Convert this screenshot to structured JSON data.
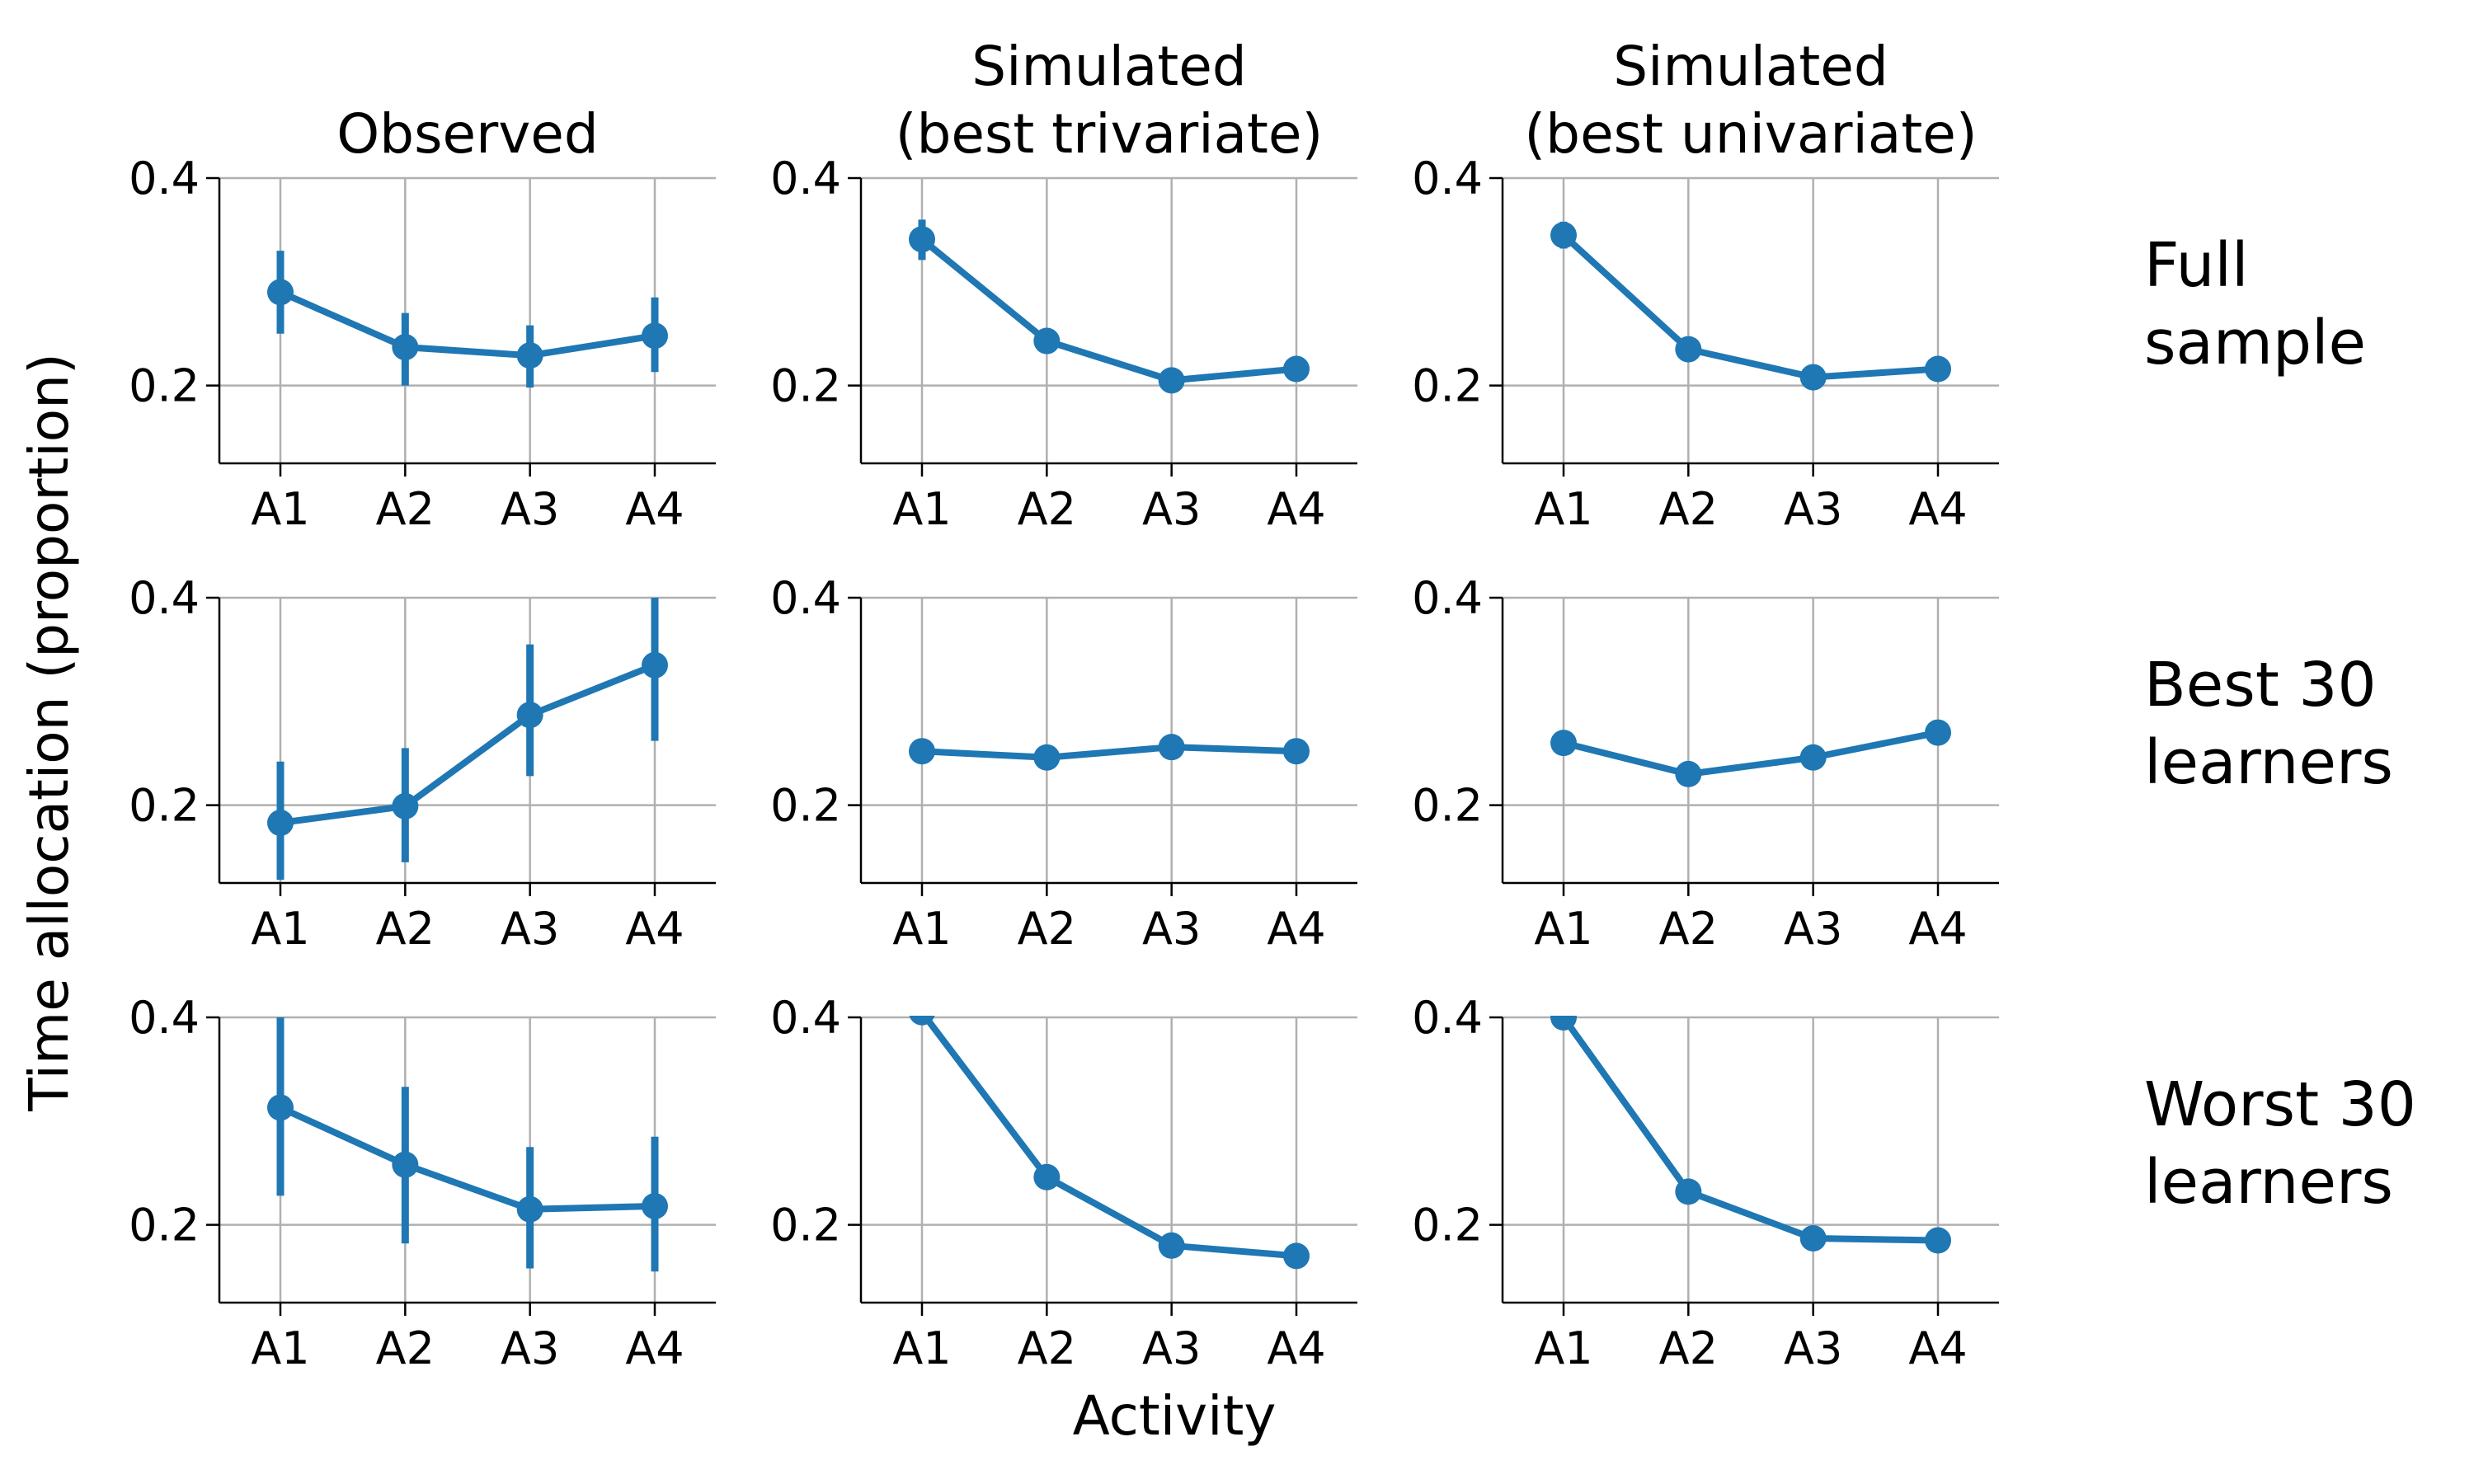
{
  "figure": {
    "ylabel": "Time allocation (proportion)",
    "xlabel": "Activity",
    "col_titles": [
      [
        "Observed"
      ],
      [
        "Simulated",
        "(best trivariate)"
      ],
      [
        "Simulated",
        "(best univariate)"
      ]
    ],
    "row_labels": [
      [
        "Full",
        "sample"
      ],
      [
        "Best 30",
        "learners"
      ],
      [
        "Worst 30",
        "learners"
      ]
    ]
  },
  "colors": {
    "series": "#1f77b4",
    "grid": "#b0b0b0",
    "axis": "#000000"
  },
  "chart_data": {
    "type": "line",
    "layout": "3x3 grid of small multiples",
    "categories": [
      "A1",
      "A2",
      "A3",
      "A4"
    ],
    "ylim": [
      0.125,
      0.4
    ],
    "yticks": [
      0.2,
      0.4
    ],
    "ytick_labels": [
      "0.2",
      "0.4"
    ],
    "grid": true,
    "error_bars": true,
    "panels": [
      {
        "row": 0,
        "col": 0,
        "values": [
          0.29,
          0.237,
          0.229,
          0.248
        ],
        "err_low": [
          0.25,
          0.2,
          0.198,
          0.213
        ],
        "err_high": [
          0.33,
          0.27,
          0.258,
          0.285
        ]
      },
      {
        "row": 0,
        "col": 1,
        "values": [
          0.341,
          0.243,
          0.205,
          0.216
        ],
        "err_low": [
          0.321,
          0.238,
          0.2,
          0.211
        ],
        "err_high": [
          0.36,
          0.248,
          0.21,
          0.221
        ]
      },
      {
        "row": 0,
        "col": 2,
        "values": [
          0.345,
          0.235,
          0.208,
          0.216
        ],
        "err_low": [
          0.332,
          0.23,
          0.203,
          0.211
        ],
        "err_high": [
          0.358,
          0.24,
          0.213,
          0.221
        ]
      },
      {
        "row": 1,
        "col": 0,
        "values": [
          0.183,
          0.199,
          0.287,
          0.335
        ],
        "err_low": [
          0.128,
          0.145,
          0.228,
          0.262
        ],
        "err_high": [
          0.242,
          0.255,
          0.355,
          0.4
        ]
      },
      {
        "row": 1,
        "col": 1,
        "values": [
          0.252,
          0.246,
          0.256,
          0.252
        ],
        "err_low": [
          0.248,
          0.242,
          0.252,
          0.248
        ],
        "err_high": [
          0.256,
          0.25,
          0.26,
          0.256
        ]
      },
      {
        "row": 1,
        "col": 2,
        "values": [
          0.26,
          0.23,
          0.246,
          0.27
        ],
        "err_low": [
          0.256,
          0.226,
          0.242,
          0.266
        ],
        "err_high": [
          0.264,
          0.234,
          0.25,
          0.274
        ]
      },
      {
        "row": 2,
        "col": 0,
        "values": [
          0.313,
          0.258,
          0.215,
          0.218
        ],
        "err_low": [
          0.228,
          0.182,
          0.158,
          0.155
        ],
        "err_high": [
          0.4,
          0.333,
          0.275,
          0.285
        ]
      },
      {
        "row": 2,
        "col": 1,
        "values": [
          0.405,
          0.246,
          0.18,
          0.17
        ],
        "err_low": [
          0.398,
          0.242,
          0.176,
          0.166
        ],
        "err_high": [
          0.412,
          0.25,
          0.184,
          0.174
        ]
      },
      {
        "row": 2,
        "col": 2,
        "values": [
          0.4,
          0.232,
          0.187,
          0.185
        ],
        "err_low": [
          0.393,
          0.228,
          0.183,
          0.181
        ],
        "err_high": [
          0.407,
          0.236,
          0.191,
          0.189
        ]
      }
    ]
  }
}
